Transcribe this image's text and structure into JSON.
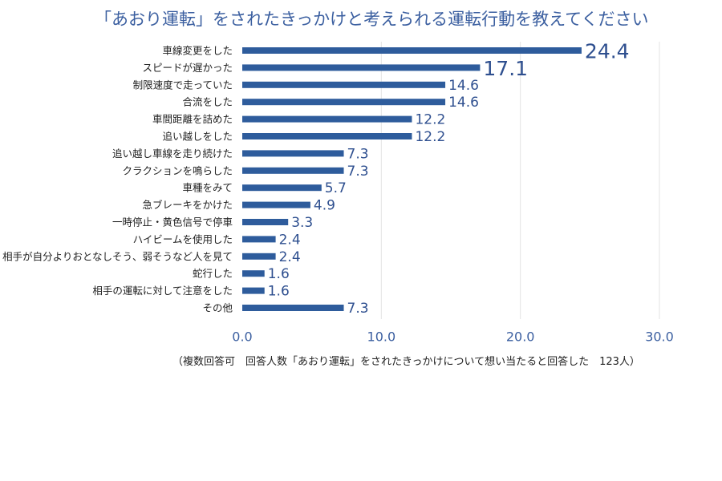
{
  "chart_data": {
    "type": "bar",
    "orientation": "horizontal",
    "title": "「あおり運転」をされたきっかけと考えられる運転行動を教えてください",
    "categories": [
      "車線変更をした",
      "スピードが遅かった",
      "制限速度で走っていた",
      "合流をした",
      "車間距離を詰めた",
      "追い越しをした",
      "追い越し車線を走り続けた",
      "クラクションを鳴らした",
      "車種をみて",
      "急ブレーキをかけた",
      "一時停止・黄色信号で停車",
      "ハイビームを使用した",
      "相手が自分よりおとなしそう、弱そうなど人を見て",
      "蛇行した",
      "相手の運転に対して注意をした",
      "その他"
    ],
    "values": [
      24.4,
      17.1,
      14.6,
      14.6,
      12.2,
      12.2,
      7.3,
      7.3,
      5.7,
      4.9,
      3.3,
      2.4,
      2.4,
      1.6,
      1.6,
      7.3
    ],
    "value_labels": [
      "24.4",
      "17.1",
      "14.6",
      "14.6",
      "12.2",
      "12.2",
      "7.3",
      "7.3",
      "5.7",
      "4.9",
      "3.3",
      "2.4",
      "2.4",
      "1.6",
      "1.6",
      "7.3"
    ],
    "xlim": [
      0,
      30
    ],
    "xticks": [
      0,
      10,
      20,
      30
    ],
    "xtick_labels": [
      "0.0",
      "10.0",
      "20.0",
      "30.0"
    ],
    "grid": true,
    "bar_color": "#2e5c9c",
    "note": "（複数回答可　回答人数「あおり運転」をされたきっかけについて想い当たると回答した　123人）"
  }
}
